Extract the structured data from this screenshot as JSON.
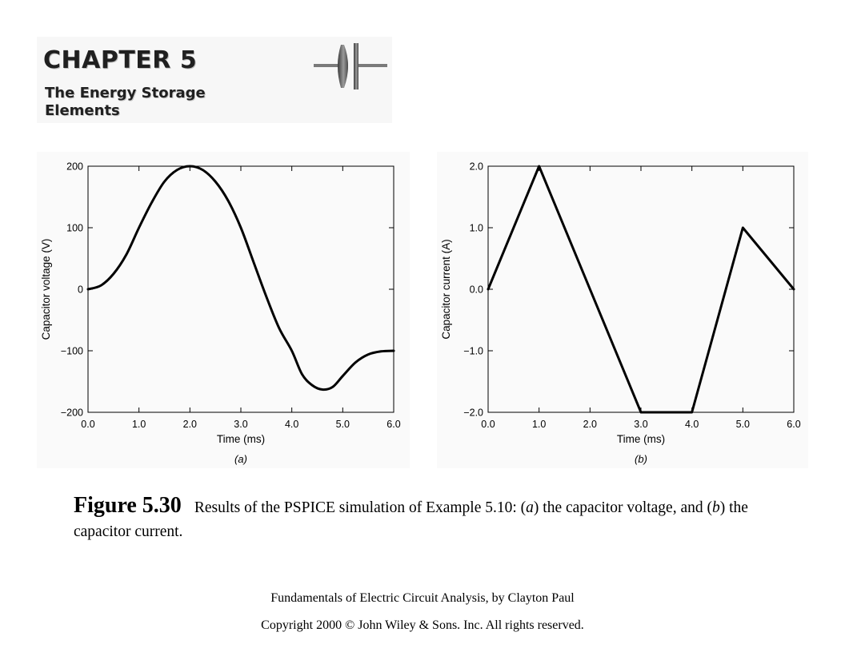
{
  "header": {
    "chapter": "CHAPTER 5",
    "subtitle_line1": "The Energy Storage",
    "subtitle_line2": "Elements"
  },
  "chart_data": [
    {
      "type": "line",
      "panel_label": "(a)",
      "xlabel": "Time (ms)",
      "ylabel": "Capacitor voltage (V)",
      "xlim": [
        0,
        6
      ],
      "ylim": [
        -200,
        200
      ],
      "xticks": [
        "0.0",
        "1.0",
        "2.0",
        "3.0",
        "4.0",
        "5.0",
        "6.0"
      ],
      "xtick_values": [
        0,
        1,
        2,
        3,
        4,
        5,
        6
      ],
      "yticks": [
        "−200",
        "−100",
        "0",
        "100",
        "200"
      ],
      "ytick_values": [
        -200,
        -100,
        0,
        100,
        200
      ],
      "grid": false,
      "series": [
        {
          "x": [
            0,
            0.25,
            0.5,
            0.75,
            1.0,
            1.25,
            1.5,
            1.75,
            2.0,
            2.25,
            2.5,
            2.75,
            3.0,
            3.25,
            3.5,
            3.75,
            4.0,
            4.2,
            4.4,
            4.6,
            4.8,
            5.0,
            5.25,
            5.5,
            5.75,
            6.0
          ],
          "y": [
            0,
            6,
            25,
            56,
            100,
            141,
            175,
            194,
            200,
            194,
            175,
            144,
            100,
            44,
            -12,
            -63,
            -100,
            -138,
            -156,
            -163,
            -159,
            -141,
            -119,
            -106,
            -101,
            -100
          ]
        }
      ]
    },
    {
      "type": "line",
      "panel_label": "(b)",
      "xlabel": "Time (ms)",
      "ylabel": "Capacitor current (A)",
      "xlim": [
        0,
        6
      ],
      "ylim": [
        -2,
        2
      ],
      "xticks": [
        "0.0",
        "1.0",
        "2.0",
        "3.0",
        "4.0",
        "5.0",
        "6.0"
      ],
      "xtick_values": [
        0,
        1,
        2,
        3,
        4,
        5,
        6
      ],
      "yticks": [
        "−2.0",
        "−1.0",
        "0.0",
        "1.0",
        "2.0"
      ],
      "ytick_values": [
        -2,
        -1,
        0,
        1,
        2
      ],
      "grid": false,
      "series": [
        {
          "x": [
            0,
            1,
            3,
            4,
            5,
            6
          ],
          "y": [
            0,
            2,
            -2,
            -2,
            1,
            0
          ]
        }
      ]
    }
  ],
  "caption": {
    "label": "Figure 5.30",
    "text_prefix": "Results of the PSPICE simulation of Example 5.10: (",
    "a": "a",
    "text_mid": ") the capacitor voltage, and (",
    "b": "b",
    "text_suffix": ") the capacitor current."
  },
  "footer": {
    "book": "Fundamentals of Electric Circuit Analysis, by Clayton Paul",
    "copyright": "Copyright 2000 © John Wiley & Sons. Inc. All rights reserved."
  }
}
